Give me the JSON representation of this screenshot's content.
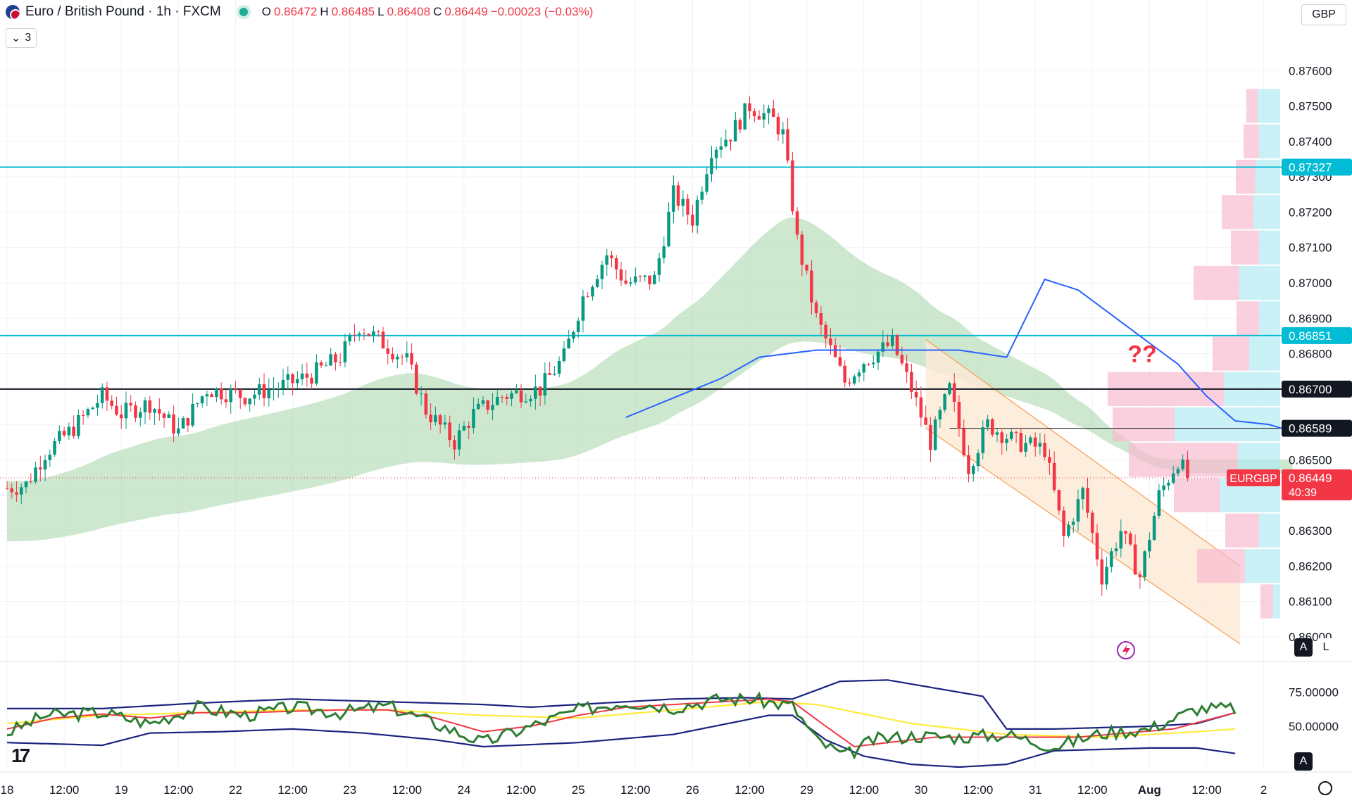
{
  "header": {
    "title": "Euro / British Pound · 1h · FXCM",
    "open_key": "O",
    "open": "0.86472",
    "high_key": "H",
    "high": "0.86485",
    "low_key": "L",
    "low": "0.86408",
    "close_key": "C",
    "close": "0.86449",
    "change": "−0.00023 (−0.03%)",
    "indicator_count": "3",
    "currency": "GBP"
  },
  "buttons": {
    "auto": "A",
    "log": "L",
    "auto2": "A"
  },
  "colors": {
    "up": "#089981",
    "down": "#f23645",
    "cyan_level": "#00bcd4",
    "ma_blue": "#2962ff",
    "band_green": "#a5d6a7",
    "channel": "#f7a35c"
  },
  "chart_data": {
    "type": "candlestick",
    "title": "Euro / British Pound · 1h · FXCM",
    "y_axis": {
      "ylim": [
        0.8594,
        0.8769
      ],
      "ticks": [
        "0.87600",
        "0.87500",
        "0.87400",
        "0.87300",
        "0.87200",
        "0.87100",
        "0.87000",
        "0.86900",
        "0.86800",
        "0.86700",
        "0.86600",
        "0.86500",
        "0.86400",
        "0.86300",
        "0.86200",
        "0.86100",
        "0.86000"
      ],
      "tick_values": [
        0.876,
        0.875,
        0.874,
        0.873,
        0.872,
        0.871,
        0.87,
        0.869,
        0.868,
        0.867,
        0.866,
        0.865,
        0.864,
        0.863,
        0.862,
        0.861,
        0.86
      ]
    },
    "x_axis": {
      "labels": [
        "18",
        "12:00",
        "19",
        "12:00",
        "22",
        "12:00",
        "23",
        "12:00",
        "24",
        "12:00",
        "25",
        "12:00",
        "26",
        "12:00",
        "29",
        "12:00",
        "30",
        "12:00",
        "31",
        "12:00",
        "Aug",
        "12:00",
        "2"
      ],
      "bar_index": [
        0,
        12,
        24,
        36,
        48,
        60,
        72,
        84,
        96,
        108,
        120,
        132,
        144,
        156,
        168,
        180,
        192,
        204,
        216,
        228,
        240,
        252,
        264
      ],
      "bold": [
        false,
        false,
        false,
        false,
        false,
        false,
        false,
        false,
        false,
        false,
        false,
        false,
        false,
        false,
        false,
        false,
        false,
        false,
        false,
        false,
        true,
        false,
        false
      ]
    },
    "horizontal_levels": [
      {
        "value": 0.87327,
        "label": "0.87327",
        "color": "#00bcd4"
      },
      {
        "value": 0.86851,
        "label": "0.86851",
        "color": "#00bcd4"
      },
      {
        "value": 0.867,
        "label": "0.86700",
        "color": "#131722"
      },
      {
        "value": 0.86589,
        "label": "0.86589",
        "color": "#131722"
      }
    ],
    "last_price": {
      "symbol": "EURGBP",
      "value": 0.86449,
      "label": "0.86449",
      "countdown": "40:39"
    },
    "annotation": "??",
    "close_waypoints": [
      [
        0,
        0.8642
      ],
      [
        4,
        0.8643
      ],
      [
        8,
        0.8652
      ],
      [
        14,
        0.8659
      ],
      [
        20,
        0.8668
      ],
      [
        24,
        0.8663
      ],
      [
        30,
        0.8666
      ],
      [
        36,
        0.8658
      ],
      [
        42,
        0.867
      ],
      [
        50,
        0.8668
      ],
      [
        58,
        0.8671
      ],
      [
        64,
        0.8674
      ],
      [
        70,
        0.8679
      ],
      [
        74,
        0.8688
      ],
      [
        78,
        0.8684
      ],
      [
        84,
        0.8678
      ],
      [
        88,
        0.8664
      ],
      [
        94,
        0.8655
      ],
      [
        98,
        0.8663
      ],
      [
        104,
        0.8668
      ],
      [
        112,
        0.867
      ],
      [
        117,
        0.8679
      ],
      [
        121,
        0.8696
      ],
      [
        126,
        0.8708
      ],
      [
        130,
        0.87
      ],
      [
        136,
        0.8701
      ],
      [
        140,
        0.8725
      ],
      [
        144,
        0.8718
      ],
      [
        148,
        0.8738
      ],
      [
        152,
        0.8742
      ],
      [
        156,
        0.875
      ],
      [
        161,
        0.8746
      ],
      [
        163,
        0.8742
      ],
      [
        166,
        0.8712
      ],
      [
        170,
        0.869
      ],
      [
        176,
        0.8672
      ],
      [
        180,
        0.8678
      ],
      [
        186,
        0.8683
      ],
      [
        190,
        0.867
      ],
      [
        194,
        0.8655
      ],
      [
        198,
        0.867
      ],
      [
        202,
        0.8648
      ],
      [
        206,
        0.866
      ],
      [
        212,
        0.8655
      ],
      [
        218,
        0.8653
      ],
      [
        222,
        0.8628
      ],
      [
        226,
        0.8641
      ],
      [
        230,
        0.8617
      ],
      [
        234,
        0.863
      ],
      [
        238,
        0.8617
      ],
      [
        242,
        0.864
      ],
      [
        246,
        0.865
      ],
      [
        248,
        0.8645
      ]
    ],
    "ma_blue_waypoints": [
      [
        130,
        0.8662
      ],
      [
        150,
        0.8673
      ],
      [
        158,
        0.8679
      ],
      [
        170,
        0.8681
      ],
      [
        200,
        0.8681
      ],
      [
        210,
        0.8679
      ],
      [
        218,
        0.8701
      ],
      [
        225,
        0.8698
      ],
      [
        229,
        0.8694
      ],
      [
        240,
        0.8683
      ],
      [
        246,
        0.8677
      ],
      [
        252,
        0.8668
      ],
      [
        258,
        0.8661
      ],
      [
        265,
        0.866
      ],
      [
        270,
        0.8658
      ]
    ],
    "oscillator": {
      "y_ticks": [
        "75.00000",
        "50.00000"
      ],
      "y_values": [
        75,
        50
      ],
      "ylim": [
        20,
        95
      ],
      "rsi_waypoints": [
        [
          0,
          45
        ],
        [
          8,
          58
        ],
        [
          20,
          60
        ],
        [
          30,
          52
        ],
        [
          40,
          64
        ],
        [
          50,
          58
        ],
        [
          60,
          64
        ],
        [
          70,
          60
        ],
        [
          80,
          65
        ],
        [
          90,
          52
        ],
        [
          100,
          38
        ],
        [
          110,
          50
        ],
        [
          120,
          62
        ],
        [
          130,
          68
        ],
        [
          140,
          64
        ],
        [
          150,
          70
        ],
        [
          156,
          70
        ],
        [
          165,
          65
        ],
        [
          170,
          40
        ],
        [
          176,
          28
        ],
        [
          182,
          40
        ],
        [
          190,
          43
        ],
        [
          200,
          42
        ],
        [
          210,
          44
        ],
        [
          220,
          35
        ],
        [
          230,
          45
        ],
        [
          240,
          48
        ],
        [
          250,
          63
        ],
        [
          258,
          63
        ]
      ],
      "signal_waypoints": [
        [
          0,
          48
        ],
        [
          10,
          56
        ],
        [
          20,
          59
        ],
        [
          30,
          56
        ],
        [
          40,
          60
        ],
        [
          50,
          60
        ],
        [
          60,
          61
        ],
        [
          70,
          62
        ],
        [
          80,
          62
        ],
        [
          90,
          56
        ],
        [
          100,
          46
        ],
        [
          110,
          50
        ],
        [
          120,
          58
        ],
        [
          130,
          64
        ],
        [
          140,
          66
        ],
        [
          150,
          68
        ],
        [
          160,
          70
        ],
        [
          165,
          68
        ],
        [
          172,
          50
        ],
        [
          178,
          35
        ],
        [
          185,
          38
        ],
        [
          195,
          42
        ],
        [
          205,
          42
        ],
        [
          215,
          42
        ],
        [
          225,
          42
        ],
        [
          235,
          45
        ],
        [
          245,
          48
        ],
        [
          258,
          60
        ]
      ],
      "yellow_waypoints": [
        [
          0,
          52
        ],
        [
          20,
          58
        ],
        [
          40,
          60
        ],
        [
          60,
          62
        ],
        [
          80,
          62
        ],
        [
          100,
          58
        ],
        [
          120,
          56
        ],
        [
          140,
          62
        ],
        [
          160,
          68
        ],
        [
          170,
          66
        ],
        [
          190,
          52
        ],
        [
          210,
          44
        ],
        [
          230,
          42
        ],
        [
          250,
          46
        ],
        [
          258,
          48
        ]
      ],
      "upper_waypoints": [
        [
          0,
          63
        ],
        [
          20,
          63
        ],
        [
          40,
          67
        ],
        [
          60,
          70
        ],
        [
          80,
          68
        ],
        [
          100,
          66
        ],
        [
          110,
          64
        ],
        [
          120,
          66
        ],
        [
          140,
          70
        ],
        [
          155,
          71
        ],
        [
          165,
          70
        ],
        [
          175,
          83
        ],
        [
          185,
          84
        ],
        [
          195,
          78
        ],
        [
          205,
          72
        ],
        [
          210,
          48
        ],
        [
          220,
          48
        ],
        [
          240,
          50
        ],
        [
          250,
          52
        ],
        [
          258,
          60
        ]
      ],
      "lower_waypoints": [
        [
          0,
          38
        ],
        [
          20,
          36
        ],
        [
          30,
          45
        ],
        [
          45,
          46
        ],
        [
          60,
          48
        ],
        [
          75,
          45
        ],
        [
          90,
          40
        ],
        [
          100,
          35
        ],
        [
          120,
          38
        ],
        [
          140,
          44
        ],
        [
          160,
          58
        ],
        [
          165,
          58
        ],
        [
          172,
          40
        ],
        [
          180,
          28
        ],
        [
          190,
          22
        ],
        [
          200,
          20
        ],
        [
          210,
          22
        ],
        [
          220,
          32
        ],
        [
          240,
          34
        ],
        [
          250,
          34
        ],
        [
          258,
          30
        ]
      ]
    }
  }
}
